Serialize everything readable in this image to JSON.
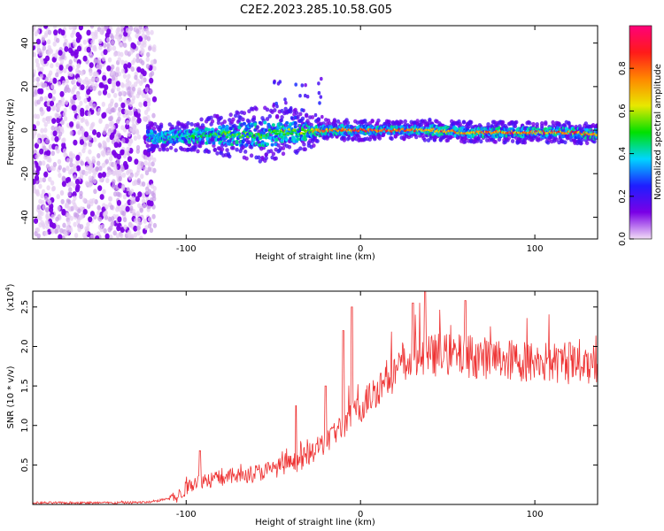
{
  "title": "C2E2.2023.285.10.58.G05",
  "chart_data": [
    {
      "type": "heatmap",
      "xlabel": "Height of straight line (km)",
      "ylabel": "Frequency (Hz)",
      "xlim": [
        -188,
        136
      ],
      "ylim": [
        -50,
        48
      ],
      "x_ticks": [
        -100,
        0,
        100
      ],
      "y_ticks": [
        -40,
        -20,
        0,
        20,
        40
      ],
      "colorbar": {
        "label": "Normalized spectral amplitude",
        "range": [
          0,
          1
        ],
        "ticks": [
          "0.0",
          "0.2",
          "0.4",
          "0.6",
          "0.8"
        ],
        "colormap": [
          "#f2ddf6",
          "#7a00e6",
          "#1e1eff",
          "#00d5ff",
          "#00e000",
          "#e8e800",
          "#ff8800",
          "#ff1a1a",
          "#ff007a"
        ]
      },
      "noise_region": {
        "x_range": [
          -188,
          -122
        ],
        "freq_range": [
          -50,
          48
        ],
        "amplitude": 0.15
      },
      "signal_band": [
        {
          "x": -122,
          "center": -3,
          "halfwidth": 4,
          "amplitude": 0.35
        },
        {
          "x": -100,
          "center": -3,
          "halfwidth": 4,
          "amplitude": 0.45
        },
        {
          "x": -80,
          "center": -2,
          "halfwidth": 6,
          "amplitude": 0.55
        },
        {
          "x": -60,
          "center": -2,
          "halfwidth": 8,
          "amplitude": 0.55
        },
        {
          "x": -40,
          "center": -1,
          "halfwidth": 7,
          "amplitude": 0.55
        },
        {
          "x": -20,
          "center": 0,
          "halfwidth": 3,
          "amplitude": 0.75
        },
        {
          "x": 0,
          "center": 0,
          "halfwidth": 3,
          "amplitude": 0.9
        },
        {
          "x": 20,
          "center": 0,
          "halfwidth": 2.5,
          "amplitude": 0.85
        },
        {
          "x": 40,
          "center": 0,
          "halfwidth": 3,
          "amplitude": 0.8
        },
        {
          "x": 60,
          "center": -1,
          "halfwidth": 3,
          "amplitude": 0.75
        },
        {
          "x": 80,
          "center": -1,
          "halfwidth": 3,
          "amplitude": 0.8
        },
        {
          "x": 100,
          "center": -1,
          "halfwidth": 3,
          "amplitude": 0.8
        },
        {
          "x": 120,
          "center": -1,
          "halfwidth": 3,
          "amplitude": 0.85
        },
        {
          "x": 136,
          "center": -2,
          "halfwidth": 3,
          "amplitude": 0.8
        }
      ]
    },
    {
      "type": "line",
      "xlabel": "Height of straight line (km)",
      "ylabel": "SNR (10 * v/v)",
      "y_multiplier": "(x10",
      "y_multiplier_exp": "4",
      "y_multiplier_close": ")",
      "xlim": [
        -188,
        136
      ],
      "ylim": [
        0,
        2.7
      ],
      "x_ticks": [
        -100,
        0,
        100
      ],
      "y_ticks": [
        "0.5",
        "1.0",
        "1.5",
        "2.0",
        "2.5"
      ],
      "color": "#ee3333",
      "envelope": {
        "x": [
          -188,
          -140,
          -120,
          -105,
          -95,
          -85,
          -75,
          -65,
          -55,
          -45,
          -35,
          -25,
          -15,
          -5,
          5,
          15,
          25,
          35,
          45,
          60,
          75,
          90,
          105,
          120,
          136
        ],
        "y": [
          0.02,
          0.02,
          0.03,
          0.1,
          0.3,
          0.32,
          0.35,
          0.38,
          0.42,
          0.48,
          0.55,
          0.7,
          0.9,
          1.1,
          1.35,
          1.6,
          1.75,
          1.85,
          1.9,
          1.88,
          1.85,
          1.82,
          1.8,
          1.78,
          1.78
        ]
      },
      "spread": 0.18,
      "peaks": [
        {
          "x": -92,
          "y": 0.68
        },
        {
          "x": -37,
          "y": 1.25
        },
        {
          "x": -20,
          "y": 1.5
        },
        {
          "x": -10,
          "y": 2.2
        },
        {
          "x": -5,
          "y": 2.5
        },
        {
          "x": 30,
          "y": 2.55
        },
        {
          "x": 37,
          "y": 2.7
        },
        {
          "x": 60,
          "y": 2.58
        },
        {
          "x": 120,
          "y": 2.05
        }
      ]
    }
  ]
}
